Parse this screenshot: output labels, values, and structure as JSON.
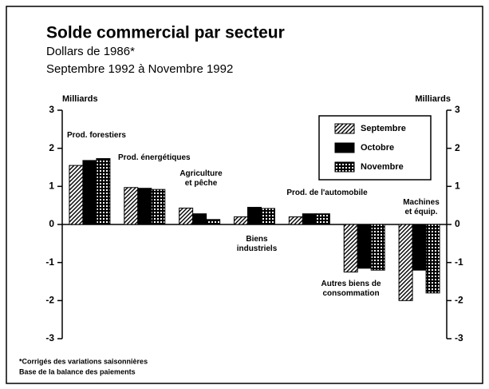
{
  "chart_data": {
    "type": "bar",
    "title": "Solde commercial par secteur",
    "subtitle": [
      "Dollars de 1986*",
      "Septembre 1992 à Novembre 1992"
    ],
    "ylabel": "Milliards",
    "y2label": "Milliards",
    "categories": [
      "Prod. forestiers",
      "Prod. énergétiques",
      "Agriculture\net pêche",
      "Biens\nindustriels",
      "Prod. de l'automobile",
      "Autres biens de\nconsommation",
      "Machines\net équip."
    ],
    "series": [
      {
        "name": "Septembre",
        "color": "#000000",
        "pattern": "diagonal",
        "values": [
          1.55,
          0.97,
          0.43,
          0.2,
          0.2,
          -1.25,
          -2.0
        ]
      },
      {
        "name": "Octobre",
        "color": "#000000",
        "pattern": "solid",
        "values": [
          1.68,
          0.95,
          0.28,
          0.45,
          0.28,
          -1.15,
          -1.2
        ]
      },
      {
        "name": "Novembre",
        "color": "#000000",
        "pattern": "grid",
        "values": [
          1.73,
          0.92,
          0.13,
          0.42,
          0.28,
          -1.2,
          -1.8
        ]
      }
    ],
    "ylim": [
      -3,
      3
    ],
    "yticks": [
      3,
      2,
      1,
      0,
      -1,
      -2,
      -3
    ],
    "y2lim": [
      -3,
      3
    ],
    "y2ticks": [
      3,
      2,
      1,
      0,
      -1,
      -2,
      -3
    ],
    "legend": "upper right",
    "footnotes": [
      "*Corrigés des variations saisonnières",
      "Base de la balance des paiements"
    ]
  }
}
